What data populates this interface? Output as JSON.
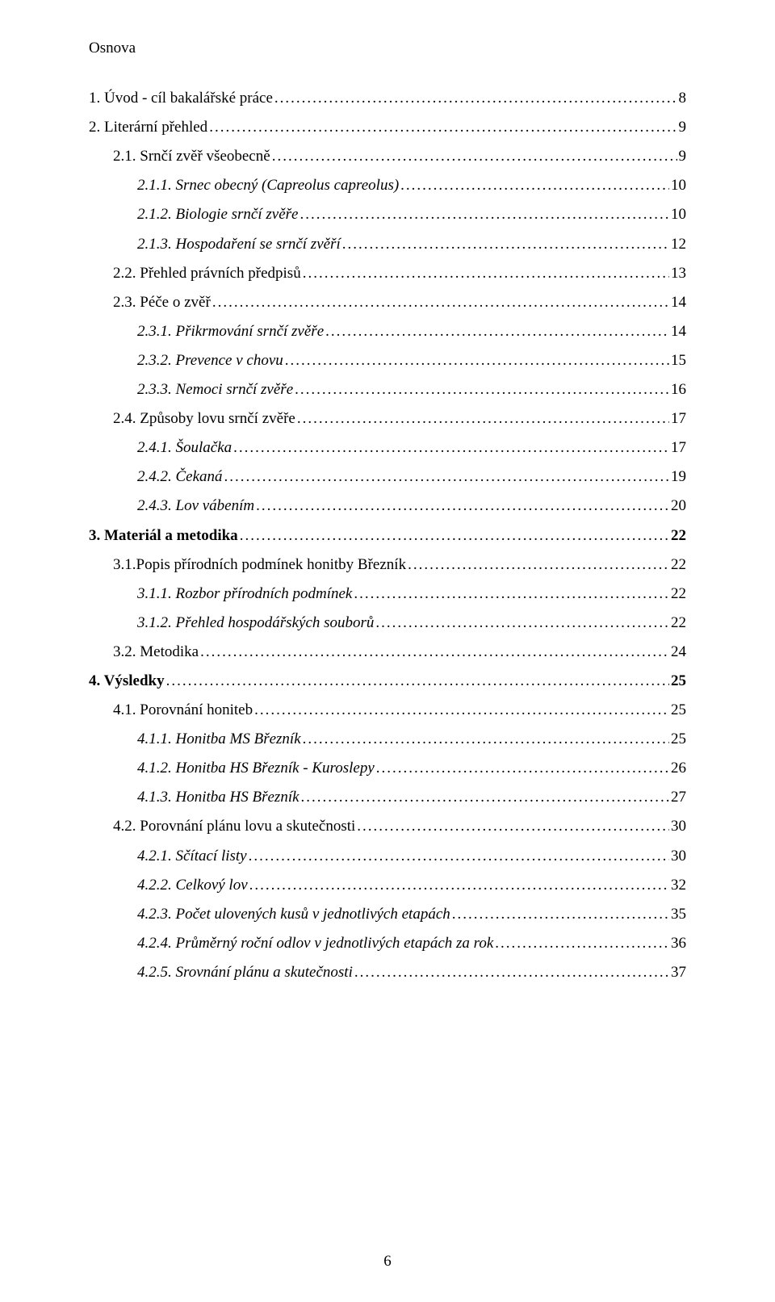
{
  "pageTitle": "Osnova",
  "footerPage": "6",
  "dotChar": ".",
  "toc": [
    {
      "indent": 0,
      "italic": false,
      "bold": false,
      "label": "1.   Úvod - cíl bakalářské práce",
      "page": "8"
    },
    {
      "indent": 0,
      "italic": false,
      "bold": false,
      "label": "2.   Literární přehled",
      "page": "9"
    },
    {
      "indent": 1,
      "italic": false,
      "bold": false,
      "label": "2.1. Srnčí zvěř všeobecně",
      "page": "9"
    },
    {
      "indent": 2,
      "italic": true,
      "bold": false,
      "label": "2.1.1.   Srnec obecný (Capreolus capreolus)",
      "page": "10"
    },
    {
      "indent": 2,
      "italic": true,
      "bold": false,
      "label": "2.1.2.   Biologie srnčí zvěře",
      "page": "10"
    },
    {
      "indent": 2,
      "italic": true,
      "bold": false,
      "label": "2.1.3.   Hospodaření se srnčí zvěří",
      "page": "12"
    },
    {
      "indent": 1,
      "italic": false,
      "bold": false,
      "label": "2.2. Přehled právních předpisů",
      "page": "13"
    },
    {
      "indent": 1,
      "italic": false,
      "bold": false,
      "label": "2.3. Péče o zvěř",
      "page": "14"
    },
    {
      "indent": 2,
      "italic": true,
      "bold": false,
      "label": "2.3.1.   Přikrmování srnčí zvěře",
      "page": "14"
    },
    {
      "indent": 2,
      "italic": true,
      "bold": false,
      "label": "2.3.2.   Prevence v chovu",
      "page": "15"
    },
    {
      "indent": 2,
      "italic": true,
      "bold": false,
      "label": "2.3.3.   Nemoci srnčí zvěře",
      "page": "16"
    },
    {
      "indent": 1,
      "italic": false,
      "bold": false,
      "label": "2.4. Způsoby lovu srnčí zvěře",
      "page": "17"
    },
    {
      "indent": 2,
      "italic": true,
      "bold": false,
      "label": "2.4.1.   Šoulačka",
      "page": "17"
    },
    {
      "indent": 2,
      "italic": true,
      "bold": false,
      "label": "2.4.2.   Čekaná",
      "page": "19"
    },
    {
      "indent": 2,
      "italic": true,
      "bold": false,
      "label": "2.4.3.   Lov vábením",
      "page": "20"
    },
    {
      "indent": 0,
      "italic": false,
      "bold": true,
      "label": "3.   Materiál a metodika",
      "page": "22"
    },
    {
      "indent": 1,
      "italic": false,
      "bold": false,
      "label": "3.1.Popis přírodních podmínek honitby Březník",
      "page": "22"
    },
    {
      "indent": 2,
      "italic": true,
      "bold": false,
      "label": "3.1.1.   Rozbor přírodních podmínek",
      "page": "22"
    },
    {
      "indent": 2,
      "italic": true,
      "bold": false,
      "label": "3.1.2.   Přehled hospodářských souborů",
      "page": "22"
    },
    {
      "indent": 1,
      "italic": false,
      "bold": false,
      "label": "3.2. Metodika",
      "page": "24"
    },
    {
      "indent": 0,
      "italic": false,
      "bold": true,
      "label": "4.   Výsledky",
      "page": "25"
    },
    {
      "indent": 1,
      "italic": false,
      "bold": false,
      "label": "4.1. Porovnání honiteb",
      "page": "25"
    },
    {
      "indent": 2,
      "italic": true,
      "bold": false,
      "label": "4.1.1.   Honitba MS Březník",
      "page": "25"
    },
    {
      "indent": 2,
      "italic": true,
      "bold": false,
      "label": "4.1.2.   Honitba HS Březník - Kuroslepy",
      "page": "26"
    },
    {
      "indent": 2,
      "italic": true,
      "bold": false,
      "label": "4.1.3.   Honitba HS Březník",
      "page": "27"
    },
    {
      "indent": 1,
      "italic": false,
      "bold": false,
      "label": "4.2. Porovnání plánu lovu a skutečnosti",
      "page": "30"
    },
    {
      "indent": 2,
      "italic": true,
      "bold": false,
      "label": "4.2.1.   Sčítací listy",
      "page": "30"
    },
    {
      "indent": 2,
      "italic": true,
      "bold": false,
      "label": "4.2.2.   Celkový lov",
      "page": "32"
    },
    {
      "indent": 2,
      "italic": true,
      "bold": false,
      "label": "4.2.3.   Počet ulovených kusů v jednotlivých etapách",
      "page": "35"
    },
    {
      "indent": 2,
      "italic": true,
      "bold": false,
      "label": "4.2.4.   Průměrný roční odlov v jednotlivých etapách za rok",
      "page": "36"
    },
    {
      "indent": 2,
      "italic": true,
      "bold": false,
      "label": "4.2.5.   Srovnání plánu a skutečnosti",
      "page": "37"
    }
  ]
}
